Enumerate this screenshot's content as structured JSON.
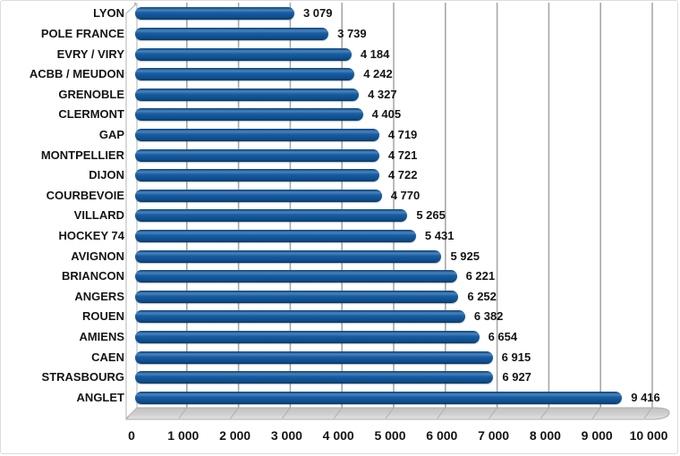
{
  "chart_data": {
    "type": "bar",
    "orientation": "horizontal",
    "title": "",
    "xlabel": "",
    "ylabel": "",
    "categories": [
      "LYON",
      "POLE FRANCE",
      "EVRY / VIRY",
      "ACBB / MEUDON",
      "GRENOBLE",
      "CLERMONT",
      "GAP",
      "MONTPELLIER",
      "DIJON",
      "COURBEVOIE",
      "VILLARD",
      "HOCKEY 74",
      "AVIGNON",
      "BRIANCON",
      "ANGERS",
      "ROUEN",
      "AMIENS",
      "CAEN",
      "STRASBOURG",
      "ANGLET"
    ],
    "values": [
      3079,
      3739,
      4184,
      4242,
      4327,
      4405,
      4719,
      4721,
      4722,
      4770,
      5265,
      5431,
      5925,
      6221,
      6252,
      6382,
      6654,
      6915,
      6927,
      9416
    ],
    "value_labels": [
      "3 079",
      "3 739",
      "4 184",
      "4 242",
      "4 327",
      "4 405",
      "4 719",
      "4 721",
      "4 722",
      "4 770",
      "5 265",
      "5 431",
      "5 925",
      "6 221",
      "6 252",
      "6 382",
      "6 654",
      "6 915",
      "6 927",
      "9 416"
    ],
    "xlim": [
      0,
      10000
    ],
    "x_tick_values": [
      0,
      1000,
      2000,
      3000,
      4000,
      5000,
      6000,
      7000,
      8000,
      9000,
      10000
    ],
    "x_tick_labels": [
      "0",
      "1 000",
      "2 000",
      "3 000",
      "4 000",
      "5 000",
      "6 000",
      "7 000",
      "8 000",
      "9 000",
      "10 000"
    ],
    "grid": "vertical",
    "legend": "none",
    "style": "excel-3d-cylinder"
  },
  "colors": {
    "bar": "#11569A",
    "gridline": "#A8A8A8",
    "wall_fill": "#FFFFFF",
    "wall_stroke": "#B3B3B3",
    "floor_fill_top": "#C2C2C2",
    "floor_fill_bottom": "#E4E4E4",
    "text": "#141414",
    "border": "#DCDCDC"
  }
}
